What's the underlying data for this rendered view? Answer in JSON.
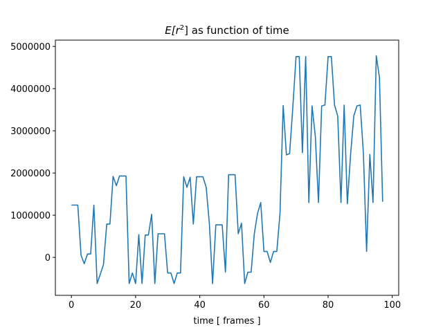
{
  "chart_data": {
    "type": "line",
    "title": "E[r²] as function of time",
    "title_parts": {
      "prefix": "E[r",
      "sup": "2",
      "suffix": "] as function of time"
    },
    "xlabel": "time [ frames ]",
    "ylabel": "",
    "xlim": [
      -5,
      102
    ],
    "ylim": [
      -900000,
      5150000
    ],
    "xticks": [
      0,
      20,
      40,
      60,
      80,
      100
    ],
    "yticks": [
      0,
      1000000,
      2000000,
      3000000,
      4000000,
      5000000
    ],
    "xtick_labels": [
      "0",
      "20",
      "40",
      "60",
      "80",
      "100"
    ],
    "ytick_labels": [
      "0",
      "1000000",
      "2000000",
      "3000000",
      "4000000",
      "5000000"
    ],
    "grid": false,
    "series": [
      {
        "color": "#1f77b4",
        "x": [
          0,
          1,
          2,
          3,
          4,
          5,
          6,
          7,
          8,
          9,
          10,
          11,
          12,
          13,
          14,
          15,
          16,
          17,
          18,
          19,
          20,
          21,
          22,
          23,
          24,
          25,
          26,
          27,
          28,
          29,
          30,
          31,
          32,
          33,
          34,
          35,
          36,
          37,
          38,
          39,
          40,
          41,
          42,
          43,
          44,
          45,
          46,
          47,
          48,
          49,
          50,
          51,
          52,
          53,
          54,
          55,
          56,
          57,
          58,
          59,
          60,
          61,
          62,
          63,
          64,
          65,
          66,
          67,
          68,
          69,
          70,
          71,
          72,
          73,
          74,
          75,
          76,
          77,
          78,
          79,
          80,
          81,
          82,
          83,
          84,
          85,
          86,
          87,
          88,
          89,
          90,
          91,
          92,
          93,
          94,
          95,
          96,
          97
        ],
        "y": [
          1240000,
          1240000,
          1240000,
          50000,
          -150000,
          80000,
          80000,
          1240000,
          -620000,
          -400000,
          -170000,
          790000,
          790000,
          1920000,
          1700000,
          1930000,
          1930000,
          1930000,
          -620000,
          -370000,
          -620000,
          540000,
          -620000,
          530000,
          530000,
          1020000,
          -620000,
          560000,
          560000,
          560000,
          -370000,
          -370000,
          -620000,
          -370000,
          -370000,
          1910000,
          1660000,
          1900000,
          790000,
          1910000,
          1910000,
          1910000,
          1660000,
          790000,
          -620000,
          770000,
          770000,
          770000,
          -350000,
          1960000,
          1960000,
          1960000,
          560000,
          810000,
          -620000,
          -350000,
          -350000,
          560000,
          1040000,
          1300000,
          140000,
          140000,
          -120000,
          140000,
          140000,
          1040000,
          3600000,
          2430000,
          2460000,
          3550000,
          4760000,
          4760000,
          2480000,
          4760000,
          1300000,
          3590000,
          2880000,
          1300000,
          3590000,
          3610000,
          4760000,
          4760000,
          3610000,
          3350000,
          1300000,
          3610000,
          1270000,
          2440000,
          3350000,
          3590000,
          3610000,
          2470000,
          140000,
          2440000,
          1300000,
          4780000,
          4260000,
          1320000
        ]
      }
    ]
  }
}
